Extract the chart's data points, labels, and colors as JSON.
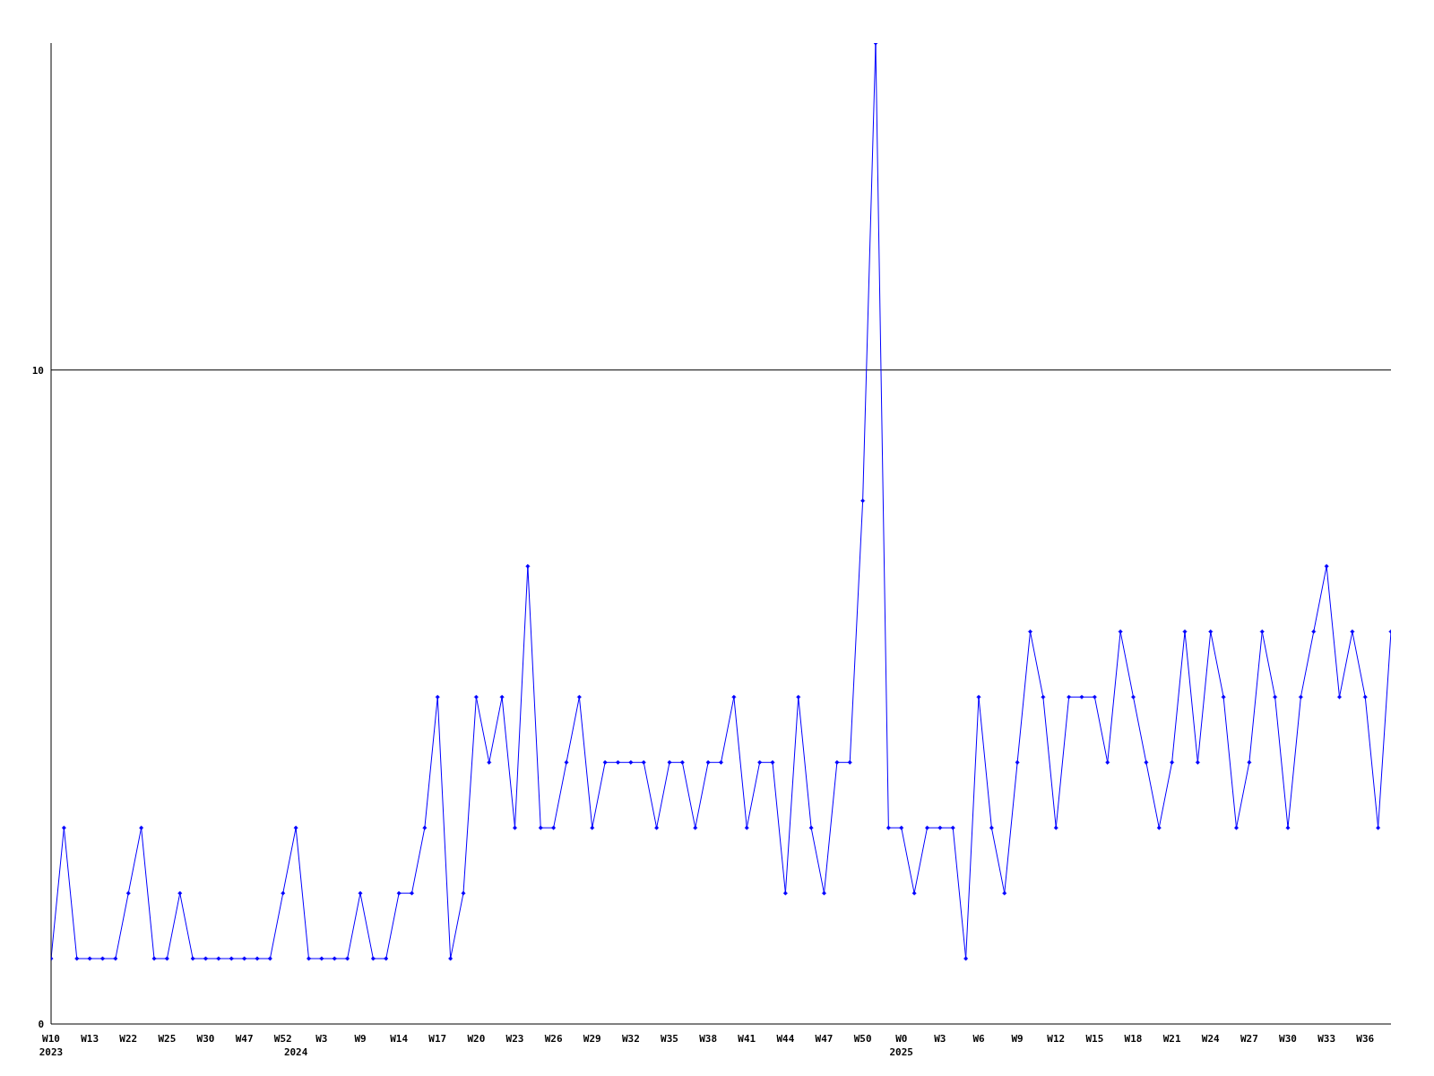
{
  "chart_data": {
    "type": "line",
    "categories": [
      "W10\n2023",
      null,
      null,
      "W13",
      null,
      null,
      "W22",
      null,
      null,
      "W25",
      null,
      null,
      "W30",
      null,
      null,
      "W47",
      null,
      null,
      "W52",
      "\n2024",
      null,
      "W3",
      null,
      null,
      "W9",
      null,
      null,
      "W14",
      null,
      null,
      "W17",
      null,
      null,
      "W20",
      null,
      null,
      "W23",
      null,
      null,
      "W26",
      null,
      null,
      "W29",
      null,
      null,
      "W32",
      null,
      null,
      "W35",
      null,
      null,
      "W38",
      null,
      null,
      "W41",
      null,
      null,
      "W44",
      null,
      null,
      "W47",
      null,
      null,
      "W50",
      null,
      null,
      "W0\n2025",
      null,
      null,
      "W3",
      null,
      null,
      "W6",
      null,
      null,
      "W9",
      null,
      null,
      "W12",
      null,
      null,
      "W15",
      null,
      null,
      "W18",
      null,
      null,
      "W21",
      null,
      null,
      "W24",
      null,
      null,
      "W27",
      null,
      null,
      "W30",
      null,
      null,
      "W33",
      null,
      null,
      "W36",
      null,
      null
    ],
    "series": [
      {
        "color": "#0000ff",
        "values": [
          1,
          3,
          1,
          1,
          1,
          1,
          2,
          3,
          1,
          1,
          2,
          1,
          1,
          1,
          1,
          1,
          1,
          1,
          2,
          3,
          1,
          1,
          1,
          1,
          2,
          1,
          1,
          2,
          2,
          3,
          5,
          1,
          2,
          5,
          4,
          5,
          3,
          7,
          3,
          3,
          4,
          5,
          3,
          4,
          4,
          4,
          4,
          3,
          4,
          4,
          3,
          4,
          4,
          5,
          3,
          4,
          4,
          2,
          5,
          3,
          2,
          4,
          4,
          8,
          15,
          3,
          3,
          2,
          3,
          3,
          3,
          1,
          5,
          3,
          2,
          4,
          6,
          5,
          3,
          5,
          5,
          5,
          4,
          6,
          5,
          4,
          3,
          4,
          6,
          4,
          6,
          5,
          3,
          4,
          6,
          5,
          3,
          5,
          6,
          7,
          5,
          6,
          5,
          3,
          6
        ]
      }
    ],
    "ylim": [
      0,
      15
    ],
    "yticks": [
      0,
      10
    ],
    "grid": "y",
    "marker": "diamond",
    "line_style": "solid",
    "legend": false
  }
}
